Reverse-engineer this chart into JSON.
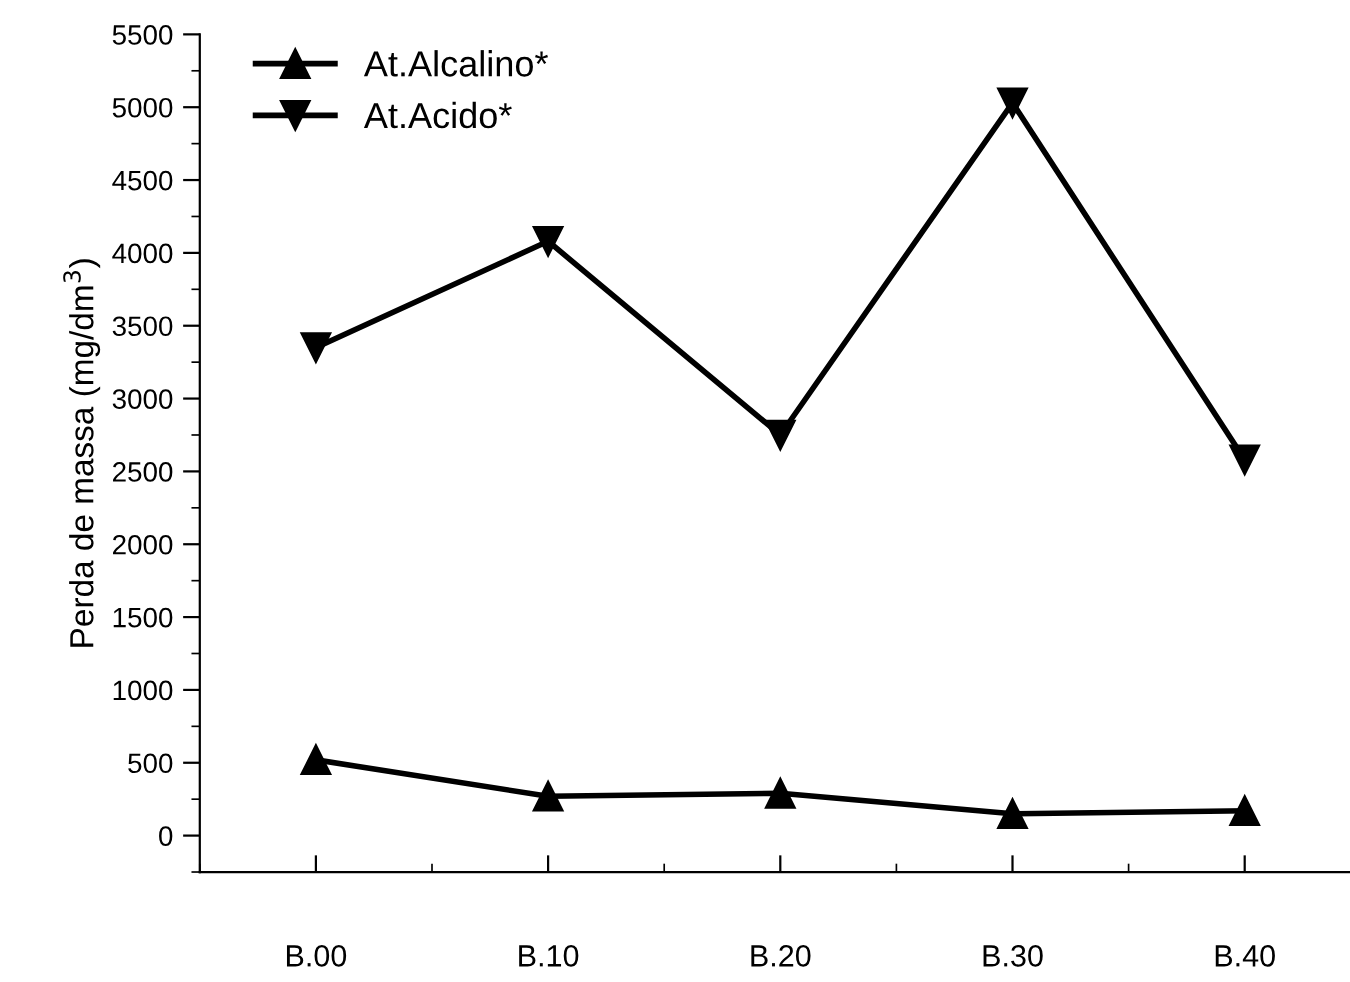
{
  "chart_data": {
    "type": "line",
    "ylabel": "Perda de massa (mg/dm$^{3}$)",
    "categories": [
      "B.00",
      "B.10",
      "B.20",
      "B.30",
      "B.40"
    ],
    "series": [
      {
        "name": "At.Alcalino*",
        "color": "#000000",
        "marker": "triangle",
        "values": [
          520,
          270,
          290,
          150,
          170
        ]
      },
      {
        "name": "At.Acido*",
        "color": "#000000",
        "marker": "triangle_down",
        "values": [
          3350,
          4080,
          2750,
          5030,
          2580
        ]
      }
    ],
    "ylim": [
      -250,
      5500
    ],
    "yticks": [
      0,
      500,
      1000,
      1500,
      2000,
      2500,
      3000,
      3500,
      4000,
      4500,
      5000,
      5500
    ],
    "grid": false,
    "legend": "top left",
    "line_style": "solid"
  }
}
